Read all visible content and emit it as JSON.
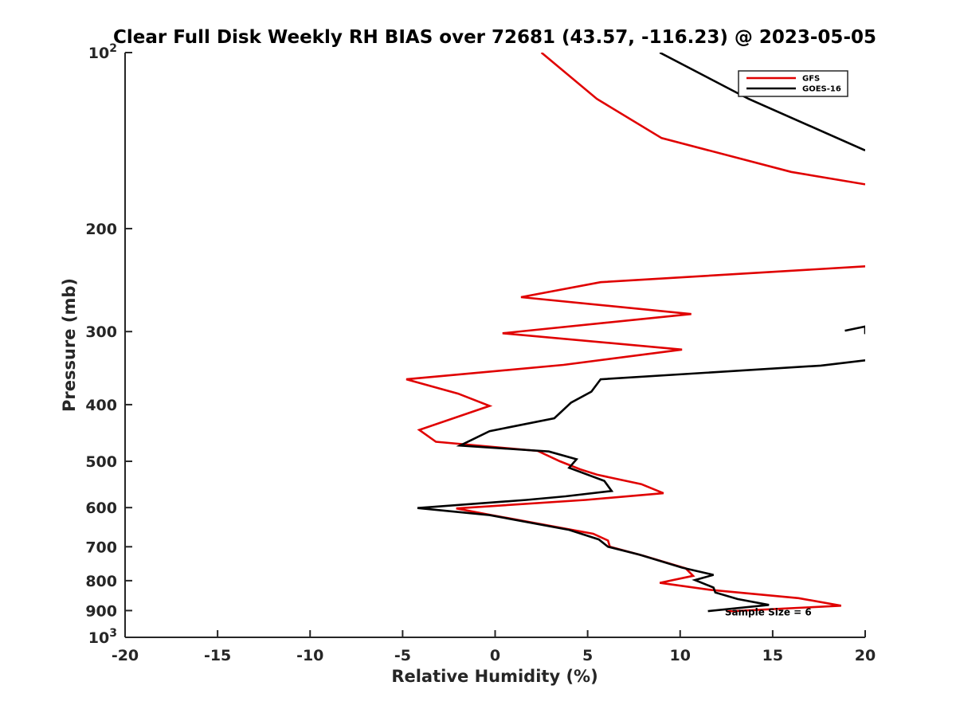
{
  "chart_data": {
    "type": "line",
    "title": "Clear Full Disk Weekly RH BIAS over 72681 (43.57, -116.23) @ 2023-05-05",
    "xlabel": "Relative Humidity (%)",
    "ylabel": "Pressure (mb)",
    "xlim": [
      -20,
      20
    ],
    "ylim": [
      100,
      1000
    ],
    "y_scale": "log",
    "y_reversed": true,
    "grid": false,
    "legend_placement": "top-right",
    "x_ticks": [
      "-20",
      "-15",
      "-10",
      "-5",
      "0",
      "5",
      "10",
      "15",
      "20"
    ],
    "y_ticks": [
      {
        "value": 100,
        "base": "10",
        "exp": "2"
      },
      {
        "value": 200,
        "label": "200"
      },
      {
        "value": 300,
        "label": "300"
      },
      {
        "value": 400,
        "label": "400"
      },
      {
        "value": 500,
        "label": "500"
      },
      {
        "value": 600,
        "label": "600"
      },
      {
        "value": 700,
        "label": "700"
      },
      {
        "value": 800,
        "label": "800"
      },
      {
        "value": 900,
        "label": "900"
      },
      {
        "value": 1000,
        "base": "10",
        "exp": "3"
      }
    ],
    "series": [
      {
        "name": "GFS",
        "color": "#e00000",
        "points": [
          [
            2.5,
            100
          ],
          [
            5.5,
            120
          ],
          [
            9.0,
            140
          ],
          [
            16.0,
            160
          ],
          [
            20.0,
            168
          ],
          [
            null,
            null
          ],
          [
            20.0,
            232
          ],
          [
            5.7,
            247
          ],
          [
            1.4,
            262
          ],
          [
            10.6,
            280
          ],
          [
            0.4,
            302
          ],
          [
            10.1,
            322
          ],
          [
            3.7,
            342
          ],
          [
            -4.8,
            362
          ],
          [
            -2.0,
            383
          ],
          [
            -0.3,
            402
          ],
          [
            -4.1,
            442
          ],
          [
            -3.2,
            463
          ],
          [
            2.3,
            480
          ],
          [
            3.5,
            500
          ],
          [
            4.6,
            516
          ],
          [
            5.5,
            527
          ],
          [
            7.9,
            547
          ],
          [
            9.1,
            567
          ],
          [
            4.9,
            582
          ],
          [
            -2.1,
            602
          ],
          [
            -0.3,
            617
          ],
          [
            5.3,
            665
          ],
          [
            6.1,
            683
          ],
          [
            6.2,
            700
          ],
          [
            8.0,
            725
          ],
          [
            10.3,
            762
          ],
          [
            10.7,
            785
          ],
          [
            8.9,
            807
          ],
          [
            11.7,
            830
          ],
          [
            16.4,
            857
          ],
          [
            18.7,
            883
          ],
          [
            12.5,
            903
          ]
        ]
      },
      {
        "name": "GOES-16",
        "color": "#000000",
        "points": [
          [
            8.9,
            100
          ],
          [
            13.7,
            120
          ],
          [
            20.0,
            147
          ],
          [
            null,
            null
          ],
          [
            18.9,
            299
          ],
          [
            20.0,
            294
          ],
          [
            20.0,
            303
          ],
          [
            null,
            null
          ],
          [
            20.0,
            336
          ],
          [
            17.6,
            343
          ],
          [
            5.7,
            362
          ],
          [
            5.2,
            380
          ],
          [
            4.1,
            397
          ],
          [
            3.2,
            422
          ],
          [
            -0.3,
            444
          ],
          [
            -1.9,
            470
          ],
          [
            2.9,
            481
          ],
          [
            4.4,
            496
          ],
          [
            4.0,
            513
          ],
          [
            5.9,
            540
          ],
          [
            6.3,
            562
          ],
          [
            3.8,
            574
          ],
          [
            1.7,
            582
          ],
          [
            -4.2,
            601
          ],
          [
            -0.3,
            618
          ],
          [
            4.0,
            655
          ],
          [
            5.6,
            680
          ],
          [
            6.1,
            700
          ],
          [
            7.8,
            722
          ],
          [
            10.1,
            760
          ],
          [
            11.8,
            782
          ],
          [
            10.8,
            798
          ],
          [
            11.8,
            822
          ],
          [
            11.9,
            838
          ],
          [
            13.1,
            860
          ],
          [
            14.8,
            880
          ],
          [
            11.5,
            902
          ]
        ]
      }
    ],
    "annotations": [
      {
        "text": "Sample Size = 6",
        "x": 12.5,
        "y": 903
      }
    ]
  }
}
